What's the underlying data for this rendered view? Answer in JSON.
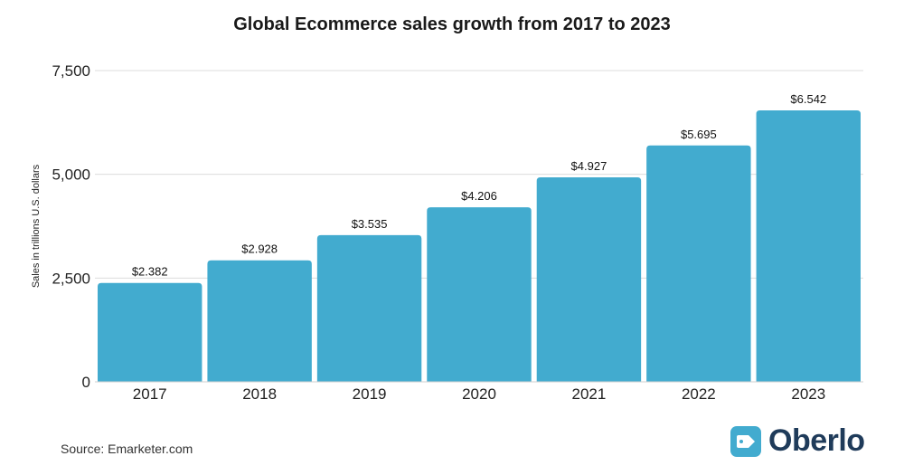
{
  "chart_data": {
    "type": "bar",
    "title": "Global Ecommerce sales growth from 2017 to 2023",
    "xlabel": "",
    "ylabel": "Sales in trillions U.S. dollars",
    "categories": [
      "2017",
      "2018",
      "2019",
      "2020",
      "2021",
      "2022",
      "2023"
    ],
    "values": [
      2382,
      2928,
      3535,
      4206,
      4927,
      5695,
      6542
    ],
    "data_labels": [
      "$2.382",
      "$2.928",
      "$3.535",
      "$4.206",
      "$4.927",
      "$5.695",
      "$6.542"
    ],
    "ylim": [
      0,
      7500
    ],
    "yticks": [
      0,
      2500,
      5000,
      7500
    ],
    "ytick_labels": [
      "0",
      "2,500",
      "5,000",
      "7,500"
    ],
    "grid": true,
    "legend": "none",
    "bar_color": "#42abcf"
  },
  "footer": {
    "source": "Source: Emarketer.com",
    "brand_name": "Oberlo",
    "brand_icon": "price-tag-icon",
    "brand_color": "#42abcf",
    "brand_text_color": "#1f3b5a"
  }
}
